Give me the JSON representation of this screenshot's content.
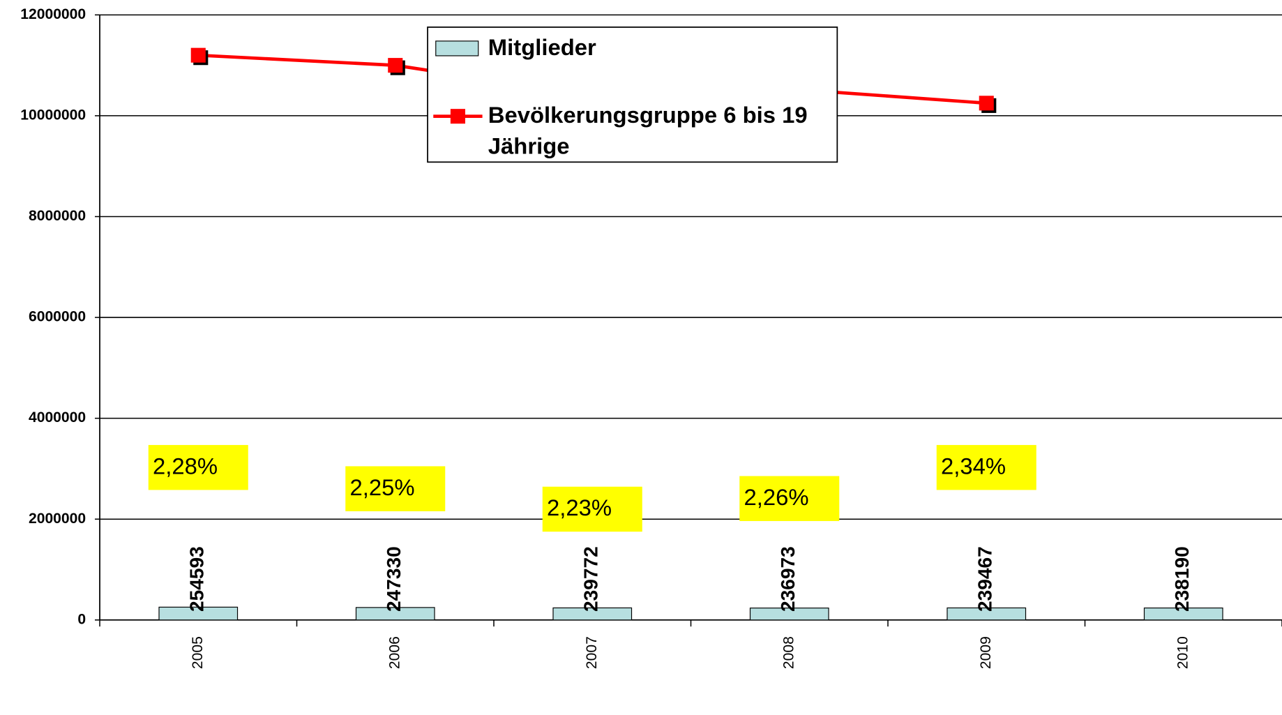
{
  "chart_data": {
    "type": "bar-line",
    "categories": [
      "2005",
      "2006",
      "2007",
      "2008",
      "2009",
      "2010"
    ],
    "series": [
      {
        "name": "Mitglieder",
        "type": "bar",
        "color": "#b7dfe0",
        "values": [
          254593,
          247330,
          239772,
          236973,
          239467,
          238190
        ]
      },
      {
        "name": "Bevölkerungsgruppe 6 bis 19 Jährige",
        "type": "line",
        "color": "#ff0000",
        "values": [
          11200000,
          11000000,
          10400000,
          10530000,
          10250000,
          null
        ]
      }
    ],
    "annotations": [
      "2,28%",
      "2,25%",
      "2,23%",
      "2,26%",
      "2,34%"
    ],
    "ylim": [
      0,
      12000000
    ],
    "yticks": [
      0,
      2000000,
      4000000,
      6000000,
      8000000,
      10000000,
      12000000
    ],
    "grid": true,
    "legend": "top"
  }
}
